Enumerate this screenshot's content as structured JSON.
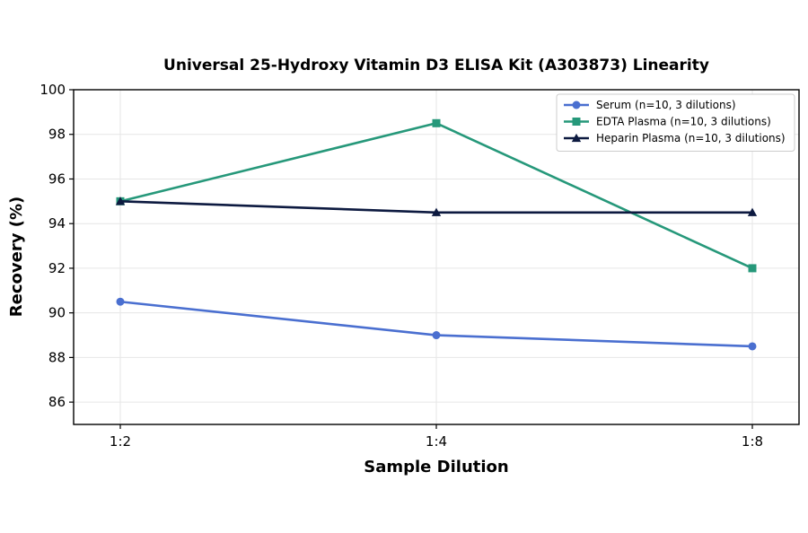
{
  "chart_data": {
    "type": "line",
    "title": "Universal 25-Hydroxy Vitamin D3 ELISA Kit (A303873) Linearity",
    "xlabel": "Sample Dilution",
    "ylabel": "Recovery (%)",
    "categories": [
      "1:2",
      "1:4",
      "1:8"
    ],
    "ylim": [
      85,
      100
    ],
    "yticks": [
      86,
      88,
      90,
      92,
      94,
      96,
      98,
      100
    ],
    "grid": true,
    "legend_position": "upper-right",
    "series": [
      {
        "name": "Serum (n=10, 3 dilutions)",
        "values": [
          90.5,
          89.0,
          88.5
        ],
        "color": "#4a6fd0",
        "marker": "circle"
      },
      {
        "name": "EDTA Plasma (n=10, 3 dilutions)",
        "values": [
          95.0,
          98.5,
          92.0
        ],
        "color": "#26987a",
        "marker": "square"
      },
      {
        "name": "Heparin Plasma (n=10, 3 dilutions)",
        "values": [
          95.0,
          94.5,
          94.5
        ],
        "color": "#0d1a40",
        "marker": "triangle"
      }
    ]
  }
}
